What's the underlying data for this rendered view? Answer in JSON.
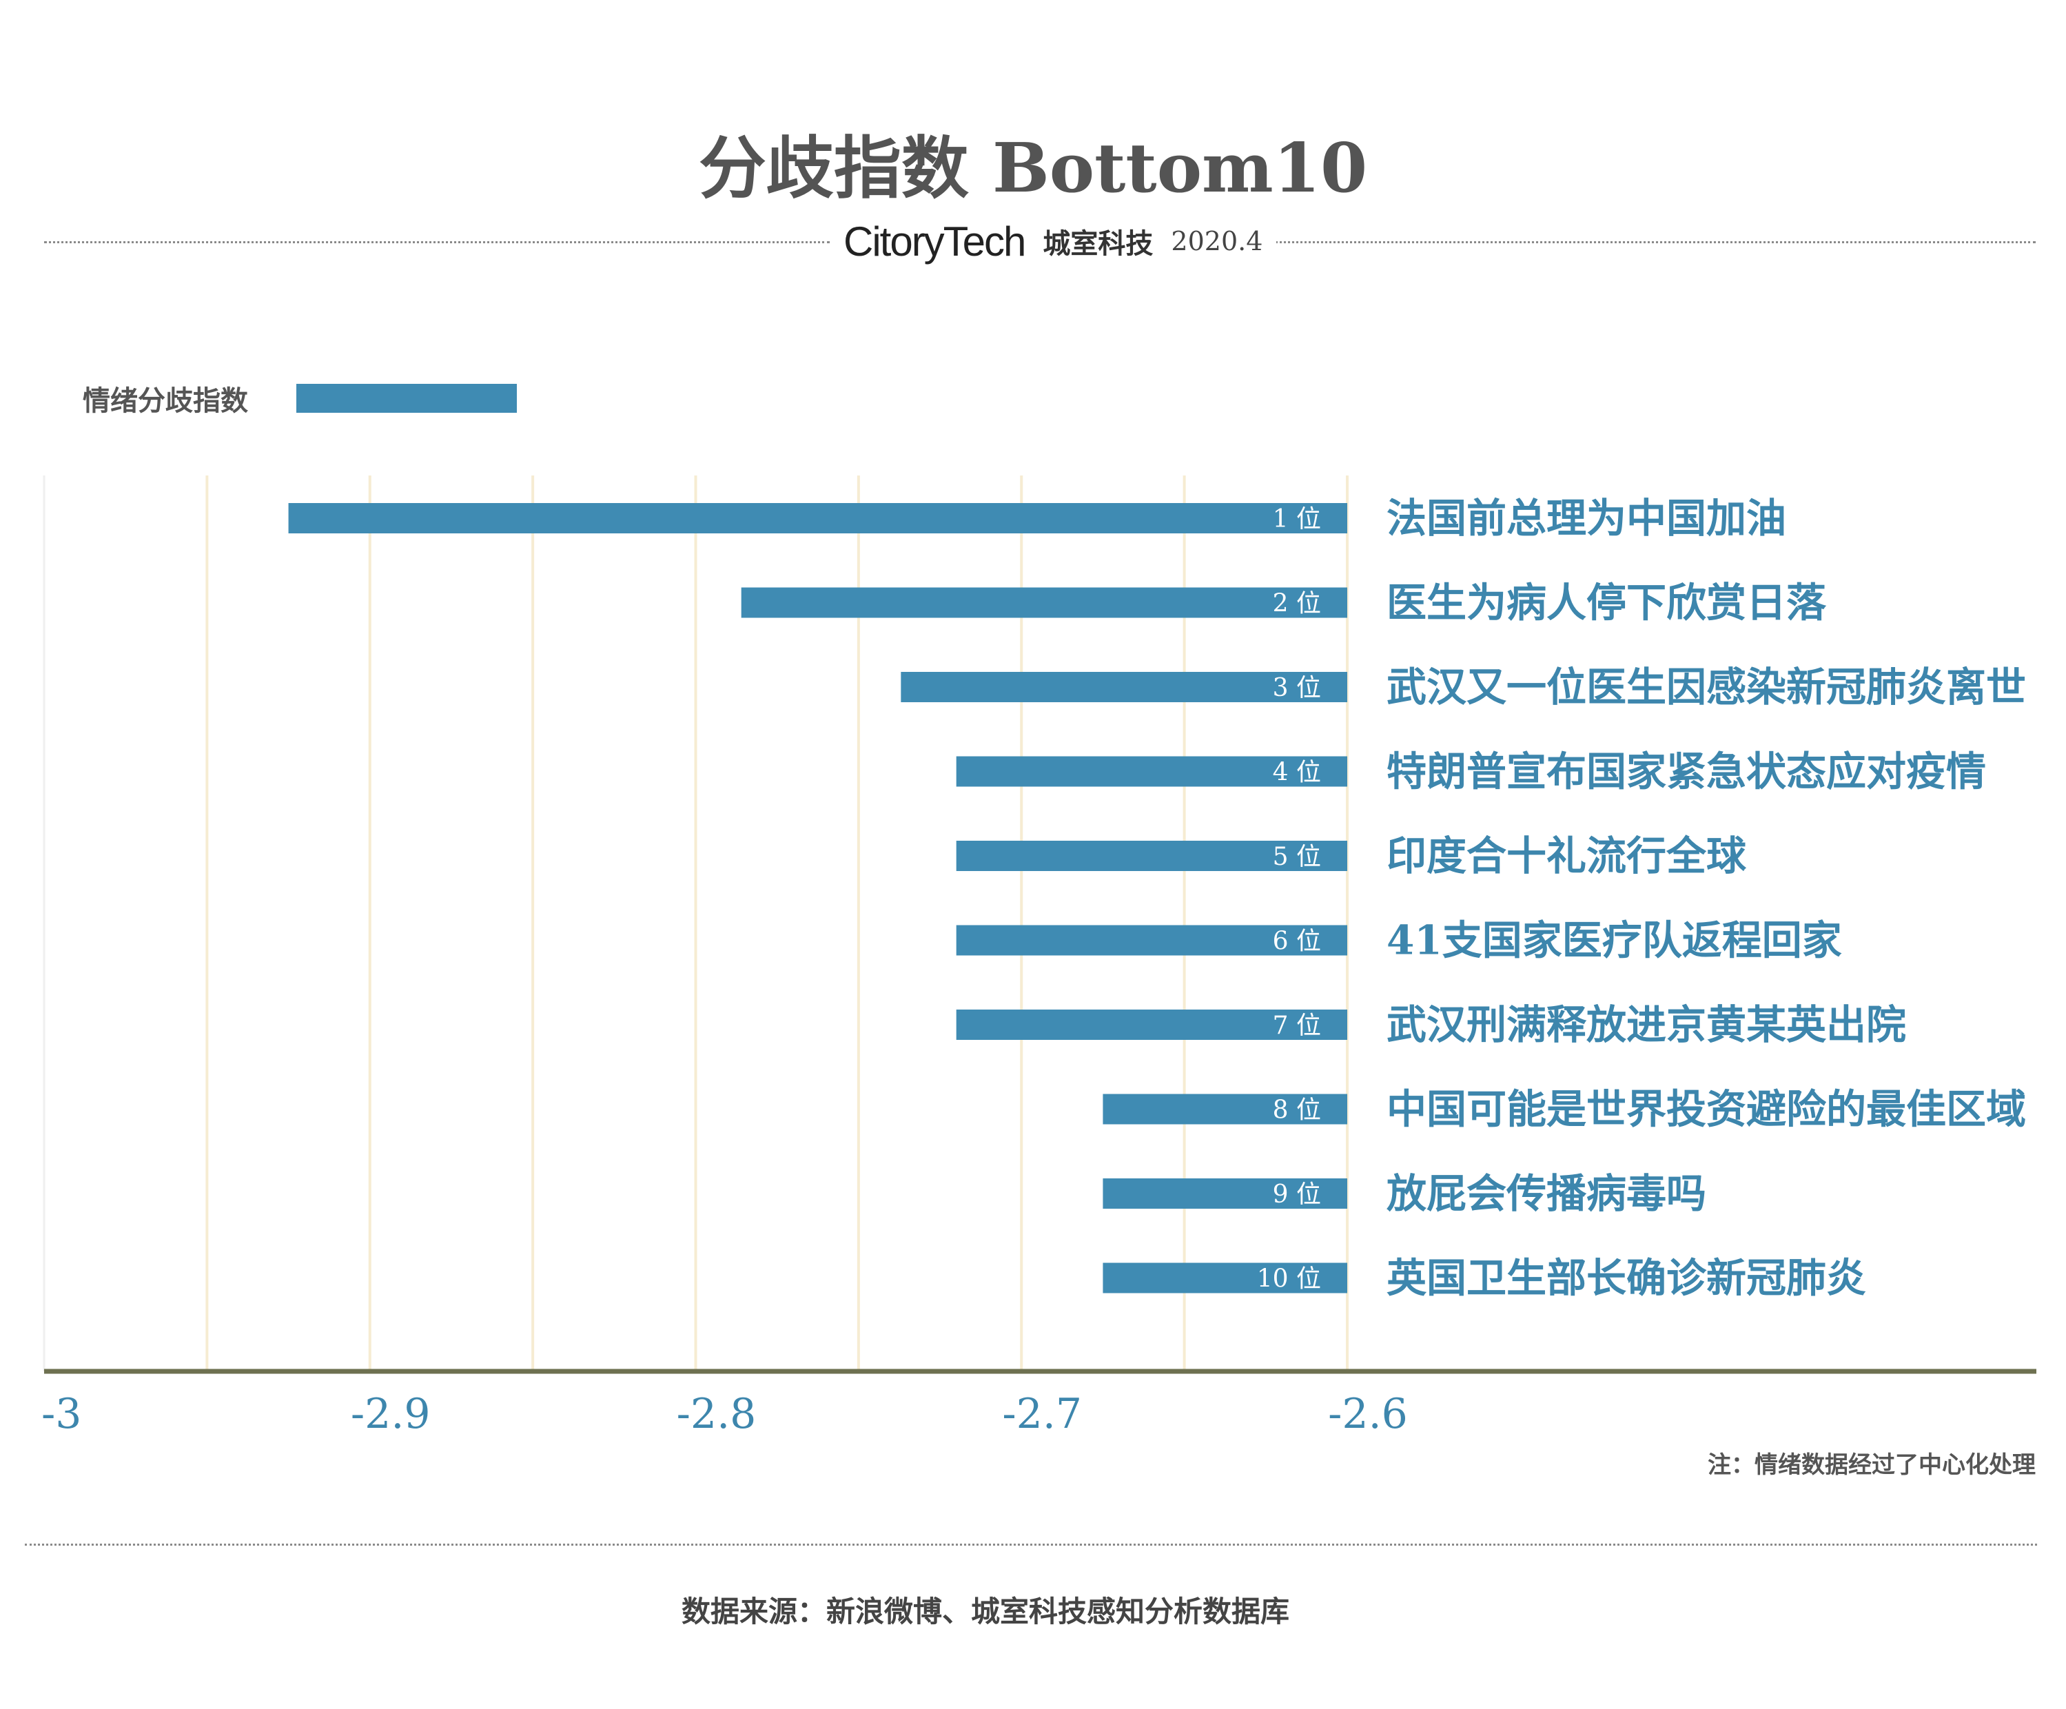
{
  "header": {
    "title": "分歧指数 Bottom10",
    "logo_text": "CitoryTech",
    "company": "城室科技",
    "date": "2020.4"
  },
  "legend": {
    "label": "情绪分歧指数"
  },
  "footnote": "注：情绪数据经过了中心化处理",
  "source": "数据来源：新浪微博、城室科技感知分析数据库",
  "colors": {
    "bar": "#3f8bb3",
    "label": "#3d86ad",
    "grid": "#f6ecd2",
    "axis": "#6e7150"
  },
  "chart_data": {
    "type": "bar",
    "orientation": "horizontal",
    "xlim": [
      -3,
      -2.6
    ],
    "x_ticks": [
      "-3",
      "-2.9",
      "-2.8",
      "-2.7",
      "-2.6"
    ],
    "x_tick_values": [
      -3,
      -2.9,
      -2.8,
      -2.7,
      -2.6
    ],
    "legend_placement": "top-left",
    "series": [
      {
        "name": "情绪分歧指数",
        "items": [
          {
            "rank": "1 位",
            "label": "法国前总理为中国加油",
            "value": -2.925
          },
          {
            "rank": "2 位",
            "label": "医生为病人停下欣赏日落",
            "value": -2.786
          },
          {
            "rank": "3 位",
            "label": "武汉又一位医生因感染新冠肺炎离世",
            "value": -2.737
          },
          {
            "rank": "4 位",
            "label": "特朗普宣布国家紧急状态应对疫情",
            "value": -2.72
          },
          {
            "rank": "5 位",
            "label": "印度合十礼流行全球",
            "value": -2.72
          },
          {
            "rank": "6 位",
            "label": "41支国家医疗队返程回家",
            "value": -2.72
          },
          {
            "rank": "7 位",
            "label": "武汉刑满释放进京黄某英出院",
            "value": -2.72
          },
          {
            "rank": "8 位",
            "label": "中国可能是世界投资避险的最佳区域",
            "value": -2.675
          },
          {
            "rank": "9 位",
            "label": "放屁会传播病毒吗",
            "value": -2.675
          },
          {
            "rank": "10 位",
            "label": "英国卫生部长确诊新冠肺炎",
            "value": -2.675
          }
        ]
      }
    ]
  }
}
